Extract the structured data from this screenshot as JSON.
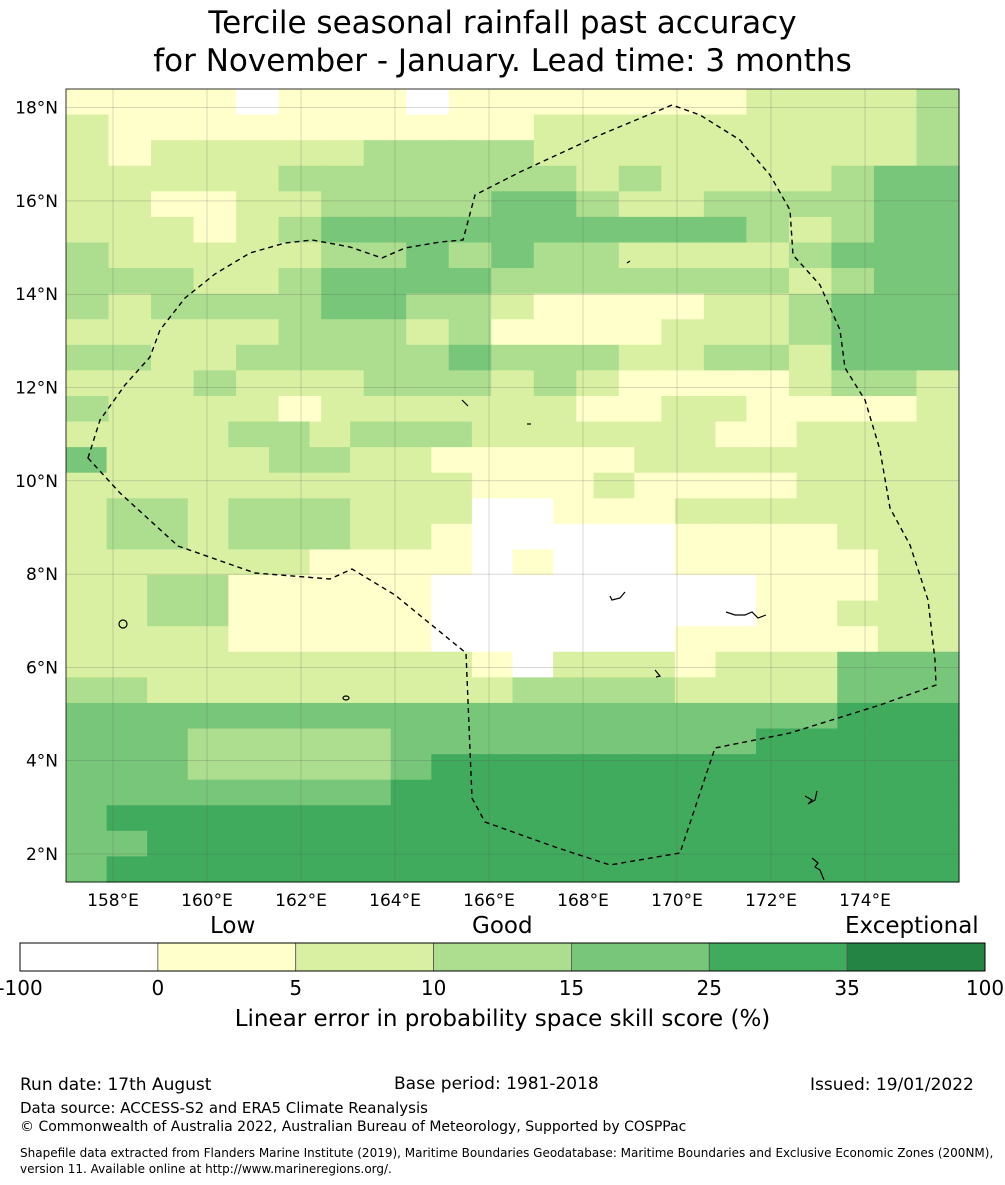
{
  "title": {
    "line1": "Tercile seasonal rainfall past accuracy",
    "line2": "for November - January. Lead time: 3 months"
  },
  "map": {
    "lat_labels": [
      "18°N",
      "16°N",
      "14°N",
      "12°N",
      "10°N",
      "8°N",
      "6°N",
      "4°N",
      "2°N"
    ],
    "lon_labels": [
      "158°E",
      "160°E",
      "162°E",
      "164°E",
      "166°E",
      "168°E",
      "170°E",
      "172°E",
      "174°E"
    ],
    "lat_values": [
      18,
      16,
      14,
      12,
      10,
      8,
      6,
      4,
      2
    ],
    "lon_values": [
      158,
      160,
      162,
      164,
      166,
      168,
      170,
      172,
      174
    ],
    "lon_range": [
      157,
      176
    ],
    "lat_range": [
      1.4,
      18.4
    ],
    "grid_cell_deg": 0.833,
    "grid_rows": [
      "111101110111111122223",
      "211111111112222222223",
      "212222233332222222223",
      "222223333333232222344",
      "221122333344322333344",
      "222123444444444432344",
      "322222334343322223444",
      "333223444433333332344",
      "323333443321111223444",
      "222223332311112223444",
      "332233333433322332444",
      "222322233323211112332",
      "322221222222112211112",
      "2222332333222222112222",
      "4222233221111122222222",
      "2222222222111211112222",
      "2332333222001112222222",
      "2332333221000001111222",
      "2222221111010001111122",
      "2233111110000000011122",
      "2233111110000000011222",
      "2222111110000001111122",
      "2222222222102221222444",
      "3322222222233332222444",
      "4444444444444444444555",
      "4443333344444444455555",
      "4443333345555555555555",
      "4444444455555555555555",
      "4555555555555555555555",
      "4455555555555555555555",
      "4555555555555555555555"
    ],
    "grid_note": ""
  },
  "legend": {
    "low": "Low",
    "good": "Good",
    "exceptional": "Exceptional",
    "ticks": [
      "-100",
      "0",
      "5",
      "10",
      "15",
      "25",
      "35",
      "100"
    ],
    "colors": [
      "#ffffff",
      "#ffffcc",
      "#d9f0a3",
      "#addd8e",
      "#78c679",
      "#41ab5d",
      "#238443"
    ],
    "title": "Linear error in probability space skill score (%)"
  },
  "footer": {
    "run_date": "Run date: 17th August",
    "base_period": "Base period: 1981-2018",
    "issued": "Issued: 19/01/2022",
    "data_source": "Data source: ACCESS-S2 and ERA5 Climate Reanalysis",
    "copyright": "© Commonwealth of Australia 2022, Australian Bureau of Meteorology, Supported by COSPPac",
    "shapefile": "Shapefile data extracted from Flanders Marine Institute (2019), Maritime Boundaries Geodatabase: Maritime Boundaries and Exclusive Economic Zones (200NM), version 11. Available online at http://www.marineregions.org/."
  }
}
